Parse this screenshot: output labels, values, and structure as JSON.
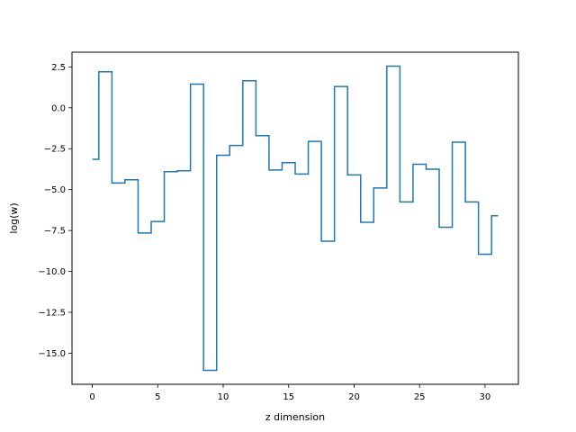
{
  "chart_data": {
    "type": "line",
    "drawstyle": "steps-mid",
    "xlabel": "z dimension",
    "ylabel": "log(w)",
    "xlim": [
      -1.55,
      32.55
    ],
    "ylim": [
      -16.9,
      3.4
    ],
    "grid": false,
    "legend": "none",
    "line_color": "#1f77b4",
    "x_ticks": [
      0,
      5,
      10,
      15,
      20,
      25,
      30
    ],
    "x_tick_labels": [
      "0",
      "5",
      "10",
      "15",
      "20",
      "25",
      "30"
    ],
    "y_ticks": [
      2.5,
      0,
      -2.5,
      -5,
      -7.5,
      -10,
      -12.5,
      -15
    ],
    "y_tick_labels": [
      "2.5",
      "0.0",
      "−2.5",
      "−5.0",
      "−7.5",
      "−10.0",
      "−12.5",
      "−15.0"
    ],
    "series": [
      {
        "x": [
          0,
          1,
          2,
          3,
          4,
          5,
          6,
          7,
          8,
          9,
          10,
          11,
          12,
          13,
          14,
          15,
          16,
          17,
          18,
          19,
          20,
          21,
          22,
          23,
          24,
          25,
          26,
          27,
          28,
          29,
          30,
          31
        ],
        "values": [
          -3.15,
          2.2,
          -4.6,
          -4.4,
          -7.65,
          -6.95,
          -3.9,
          -3.85,
          1.45,
          -16.05,
          -2.9,
          -2.3,
          1.65,
          -1.7,
          -3.8,
          -3.35,
          -4.05,
          -2.05,
          -8.15,
          1.3,
          -4.1,
          -7.0,
          -4.9,
          2.55,
          -5.75,
          -3.45,
          -3.75,
          -7.3,
          -2.1,
          -5.75,
          -8.95,
          -6.6
        ]
      }
    ]
  }
}
